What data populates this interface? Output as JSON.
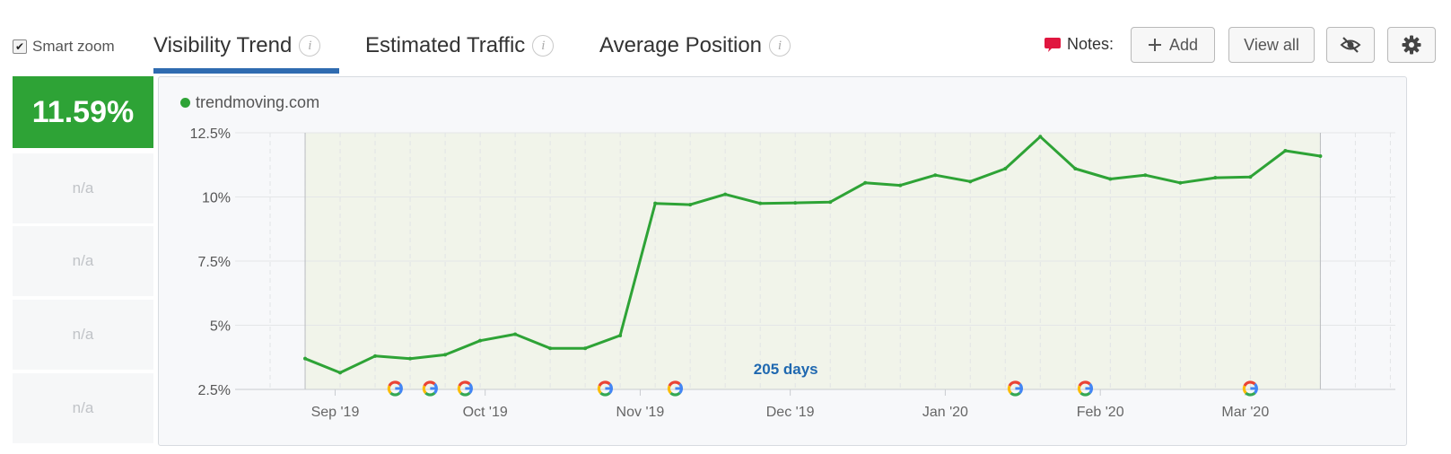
{
  "toolbar": {
    "smart_zoom_label": "Smart zoom",
    "smart_zoom_checked": true,
    "tabs": [
      {
        "label": "Visibility Trend",
        "active": true
      },
      {
        "label": "Estimated Traffic",
        "active": false
      },
      {
        "label": "Average Position",
        "active": false
      }
    ],
    "notes_label": "Notes:",
    "add_label": "Add",
    "view_all_label": "View all",
    "icons": [
      "info-icon",
      "speech-bubble-icon",
      "plus-icon",
      "eye-slash-icon",
      "gear-icon"
    ]
  },
  "sidebar": {
    "main_value": "11.59%",
    "rows": [
      "n/a",
      "n/a",
      "n/a",
      "n/a"
    ]
  },
  "colors": {
    "accent_green": "#2ea336",
    "tab_underline": "#2f6bb0",
    "annotation_blue": "#1f68b0",
    "notes_red": "#e0163f"
  },
  "chart_data": {
    "type": "line",
    "legend": "trendmoving.com",
    "legend_position": "top-left",
    "annotation": "205 days",
    "x_ticks": [
      "Sep '19",
      "Oct '19",
      "Nov '19",
      "Dec '19",
      "Jan '20",
      "Feb '20",
      "Mar '20"
    ],
    "y_ticks": [
      "12.5%",
      "10%",
      "7.5%",
      "5%",
      "2.5%"
    ],
    "ylim": [
      2.5,
      12.5
    ],
    "grid": true,
    "series": [
      {
        "name": "trendmoving.com",
        "x": [
          "2019-08-26",
          "2019-09-02",
          "2019-09-09",
          "2019-09-16",
          "2019-09-23",
          "2019-09-30",
          "2019-10-07",
          "2019-10-14",
          "2019-10-21",
          "2019-10-28",
          "2019-11-04",
          "2019-11-11",
          "2019-11-18",
          "2019-11-25",
          "2019-12-02",
          "2019-12-09",
          "2019-12-16",
          "2019-12-23",
          "2019-12-30",
          "2020-01-06",
          "2020-01-13",
          "2020-01-20",
          "2020-01-27",
          "2020-02-03",
          "2020-02-10",
          "2020-02-17",
          "2020-02-24",
          "2020-03-02",
          "2020-03-09",
          "2020-03-16"
        ],
        "values": [
          3.7,
          3.15,
          3.8,
          3.7,
          3.85,
          4.4,
          4.65,
          4.1,
          4.1,
          4.6,
          9.75,
          9.7,
          10.1,
          9.75,
          9.77,
          9.8,
          10.55,
          10.45,
          10.85,
          10.6,
          11.1,
          12.35,
          11.1,
          10.7,
          10.85,
          10.55,
          10.75,
          10.78,
          11.8,
          11.59
        ]
      }
    ],
    "google_update_markers": [
      "2019-09-13",
      "2019-09-20",
      "2019-09-27",
      "2019-10-25",
      "2019-11-08",
      "2020-01-15",
      "2020-01-29",
      "2020-03-02"
    ]
  }
}
